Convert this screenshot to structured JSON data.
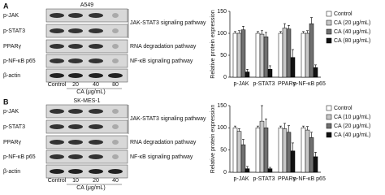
{
  "figure": {
    "panels": [
      {
        "label": "A",
        "cell_line": "A549",
        "proteins": [
          "p-JAK",
          "p-STAT3",
          "PPARγ",
          "p-NF-κB p65",
          "β-actin"
        ],
        "pathways": [
          "JAK-STAT3 signaling pathway",
          "RNA degradation pathway",
          "NF-κB signaling pathway"
        ],
        "lanes": [
          "Control",
          "20",
          "40",
          "80"
        ],
        "lane_axis": "CA (μg/mL)"
      },
      {
        "label": "B",
        "cell_line": "SK-MES-1",
        "proteins": [
          "p-JAK",
          "p-STAT3",
          "PPARγ",
          "p-NF-κB p65",
          "β-actin"
        ],
        "pathways": [
          "JAK-STAT3 signaling pathway",
          "RNA degradation pathway",
          "NF-κB signaling pathway"
        ],
        "lanes": [
          "Control",
          "10",
          "20",
          "40"
        ],
        "lane_axis": "CA (μg/mL)"
      }
    ]
  },
  "chart_data": [
    {
      "type": "bar",
      "y_label": "Relative protein expression",
      "categories": [
        "p-JAK",
        "p-STAT3",
        "PPARγ",
        "p-NF-κB p65"
      ],
      "ylim": [
        0,
        150
      ],
      "yticks": [
        0,
        50,
        100,
        150
      ],
      "series": [
        {
          "name": "Control",
          "color": "#ffffff",
          "values": [
            100,
            100,
            100,
            100
          ],
          "errors": [
            4,
            4,
            4,
            4
          ]
        },
        {
          "name": "CA (20 μg/mL)",
          "color": "#c8c8c8",
          "values": [
            100,
            98,
            112,
            100
          ],
          "errors": [
            6,
            8,
            10,
            6
          ]
        },
        {
          "name": "CA (40 μg/mL)",
          "color": "#707070",
          "values": [
            108,
            92,
            110,
            122
          ],
          "errors": [
            8,
            10,
            8,
            14
          ]
        },
        {
          "name": "CA (80 μg/mL)",
          "color": "#111111",
          "values": [
            12,
            18,
            45,
            22
          ],
          "errors": [
            6,
            8,
            18,
            6
          ]
        }
      ]
    },
    {
      "type": "bar",
      "y_label": "Relative protein expression",
      "categories": [
        "p-JAK",
        "p-STAT3",
        "PPARγ",
        "p-NF-κB p65"
      ],
      "ylim": [
        0,
        150
      ],
      "yticks": [
        0,
        50,
        100,
        150
      ],
      "series": [
        {
          "name": "Control",
          "color": "#ffffff",
          "values": [
            100,
            100,
            100,
            100
          ],
          "errors": [
            4,
            4,
            4,
            4
          ]
        },
        {
          "name": "CA (10 μg/mL)",
          "color": "#c8c8c8",
          "values": [
            92,
            115,
            98,
            95
          ],
          "errors": [
            6,
            35,
            12,
            8
          ]
        },
        {
          "name": "CA (20 μg/mL)",
          "color": "#707070",
          "values": [
            62,
            100,
            90,
            78
          ],
          "errors": [
            12,
            20,
            15,
            12
          ]
        },
        {
          "name": "CA (40 μg/mL)",
          "color": "#111111",
          "values": [
            8,
            8,
            48,
            35
          ],
          "errors": [
            5,
            3,
            18,
            10
          ]
        }
      ]
    }
  ]
}
